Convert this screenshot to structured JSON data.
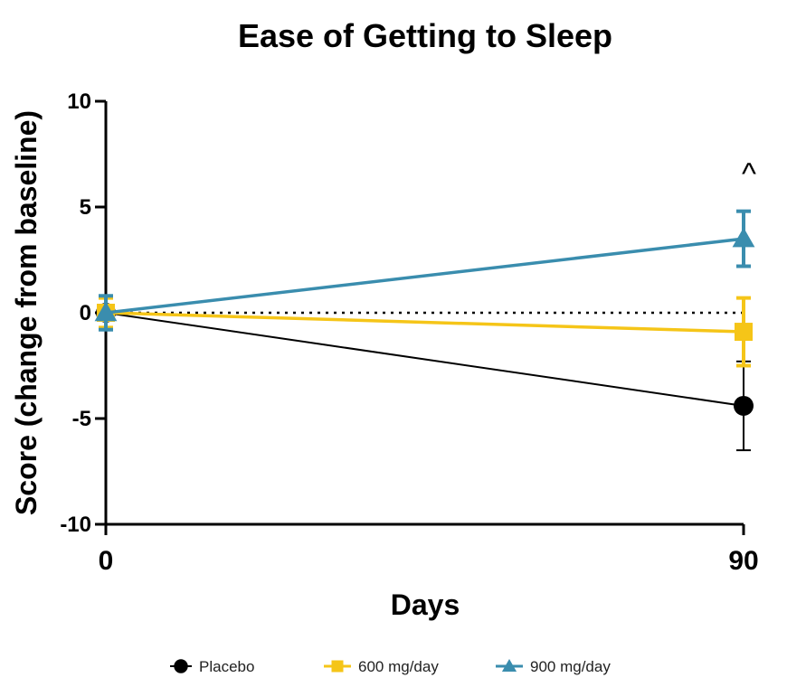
{
  "chart_data": {
    "type": "line",
    "title": "Ease of Getting to Sleep",
    "xlabel": "Days",
    "ylabel": "Score  (change from baseline)",
    "x": [
      0,
      90
    ],
    "x_tick_labels": [
      "0",
      "90"
    ],
    "ylim": [
      -10,
      10
    ],
    "y_ticks": [
      10,
      5,
      0,
      -5,
      -10
    ],
    "y_tick_labels": [
      "10",
      "5",
      "0",
      "-5",
      "-10"
    ],
    "reference_line": {
      "y": 0,
      "style": "dotted"
    },
    "grid": false,
    "legend_position": "bottom",
    "series": [
      {
        "name": "Placebo",
        "color": "#000000",
        "marker": "circle",
        "values": [
          0,
          -4.4
        ],
        "errors": [
          0.8,
          2.1
        ]
      },
      {
        "name": "600 mg/day",
        "color": "#F5C518",
        "marker": "square",
        "values": [
          0,
          -0.9
        ],
        "errors": [
          0.7,
          1.6
        ]
      },
      {
        "name": "900 mg/day",
        "color": "#3A8DAE",
        "marker": "triangle",
        "values": [
          0,
          3.5
        ],
        "errors": [
          0.8,
          1.3
        ]
      }
    ],
    "annotations": [
      {
        "text": "^",
        "x": 90,
        "y": 7
      }
    ]
  }
}
